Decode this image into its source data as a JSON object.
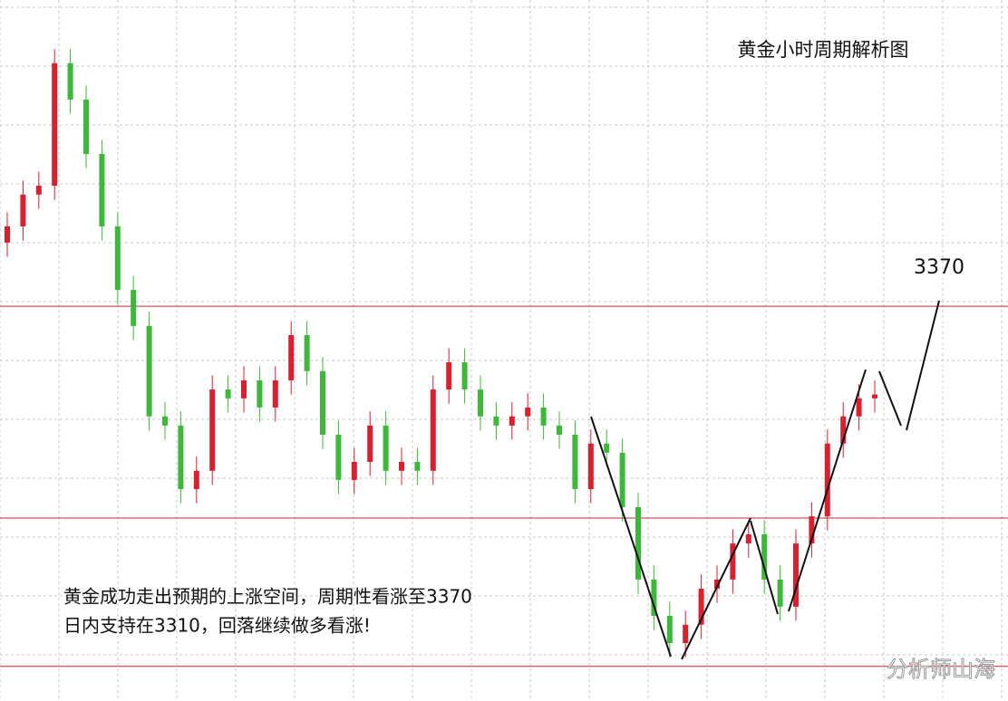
{
  "chart_data": {
    "type": "candlestick",
    "title": "黄金小时周期解析图",
    "annotations": [
      "黄金成功走出预期的上涨空间，周期性看涨至3370",
      "日内支持在3310，回落继续做多看涨!"
    ],
    "target_label": "3370",
    "watermark": "分析师山海",
    "grid": true,
    "up_color": "#d9202f",
    "down_color": "#3db83a",
    "level_color": "#d9202f",
    "levels": [
      3370,
      3310,
      3268
    ],
    "ylim": [
      3258.2,
      3456.7
    ],
    "open": [
      3388.0,
      3392.6,
      3401.6,
      3404.1,
      3438.8,
      3428.5,
      3413.1,
      3392.6,
      3374.6,
      3364.4,
      3338.8,
      3336.2,
      3318.2,
      3323.4,
      3346.4,
      3343.9,
      3349.0,
      3341.3,
      3349.0,
      3361.8,
      3351.6,
      3333.6,
      3320.8,
      3325.9,
      3336.2,
      3323.4,
      3325.9,
      3323.4,
      3346.4,
      3354.1,
      3346.4,
      3338.8,
      3336.2,
      3338.8,
      3341.3,
      3336.2,
      3333.6,
      3318.2,
      3331.1,
      3328.5,
      3313.1,
      3292.6,
      3282.3,
      3274.6,
      3279.8,
      3290.0,
      3292.6,
      3302.8,
      3305.4,
      3292.6,
      3284.9,
      3302.8,
      3310.5,
      3331.1,
      3338.8,
      3343.9
    ],
    "high": [
      3396.6,
      3405.6,
      3408.1,
      3442.8,
      3442.8,
      3432.5,
      3417.1,
      3396.6,
      3378.6,
      3368.4,
      3342.8,
      3340.2,
      3327.4,
      3350.4,
      3350.4,
      3353.0,
      3353.0,
      3353.0,
      3365.8,
      3365.8,
      3355.6,
      3337.6,
      3329.9,
      3340.2,
      3340.2,
      3329.9,
      3329.9,
      3350.4,
      3358.1,
      3358.1,
      3350.4,
      3342.8,
      3342.8,
      3345.3,
      3345.3,
      3340.2,
      3337.6,
      3335.1,
      3335.1,
      3332.5,
      3317.1,
      3296.6,
      3286.3,
      3283.8,
      3294.0,
      3296.6,
      3306.8,
      3309.4,
      3309.4,
      3296.6,
      3306.8,
      3314.5,
      3335.1,
      3342.8,
      3347.9,
      3349.0
    ],
    "low": [
      3384.0,
      3388.6,
      3397.6,
      3400.1,
      3424.5,
      3409.1,
      3388.6,
      3370.6,
      3360.4,
      3334.8,
      3332.2,
      3314.2,
      3314.2,
      3319.4,
      3339.9,
      3339.9,
      3337.3,
      3337.3,
      3345.0,
      3347.6,
      3329.6,
      3316.8,
      3316.8,
      3321.9,
      3319.4,
      3319.4,
      3319.4,
      3319.4,
      3342.4,
      3342.4,
      3334.8,
      3332.2,
      3332.2,
      3334.8,
      3332.2,
      3329.6,
      3314.2,
      3314.2,
      3324.5,
      3309.1,
      3288.6,
      3278.3,
      3270.6,
      3270.6,
      3275.8,
      3286.0,
      3288.6,
      3298.8,
      3288.6,
      3280.9,
      3280.9,
      3298.8,
      3306.5,
      3327.1,
      3334.8,
      3339.9
    ],
    "close": [
      3392.6,
      3401.6,
      3404.1,
      3438.8,
      3428.5,
      3413.1,
      3392.6,
      3374.6,
      3364.4,
      3338.8,
      3336.2,
      3318.2,
      3323.4,
      3346.4,
      3343.9,
      3349.0,
      3341.3,
      3349.0,
      3361.8,
      3351.6,
      3333.6,
      3320.8,
      3325.9,
      3336.2,
      3323.4,
      3325.9,
      3323.4,
      3346.4,
      3354.1,
      3346.4,
      3338.8,
      3336.2,
      3338.8,
      3341.3,
      3336.2,
      3333.6,
      3318.2,
      3331.1,
      3328.5,
      3313.1,
      3292.6,
      3282.3,
      3274.6,
      3279.8,
      3290.0,
      3292.6,
      3302.8,
      3305.4,
      3292.6,
      3284.9,
      3302.8,
      3310.5,
      3331.1,
      3338.8,
      3343.9,
      3345.0
    ]
  }
}
